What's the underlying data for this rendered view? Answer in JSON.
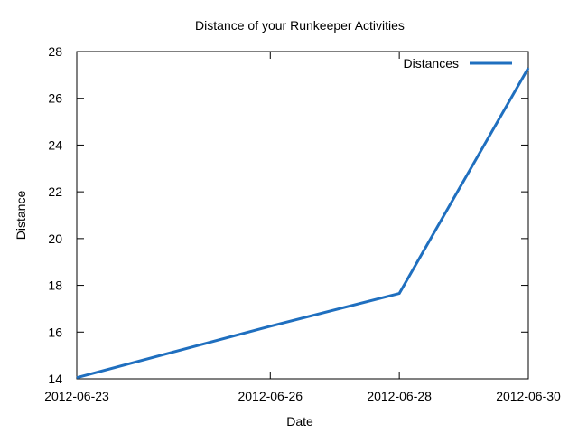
{
  "chart_data": {
    "type": "line",
    "title": "Distance of your Runkeeper Activities",
    "xlabel": "Date",
    "ylabel": "Distance",
    "x_tick_labels": [
      "2012-06-23",
      "2012-06-26",
      "2012-06-28",
      "2012-06-30"
    ],
    "y_ticks": [
      14,
      16,
      18,
      20,
      22,
      24,
      26,
      28
    ],
    "ylim": [
      14,
      28
    ],
    "legend_position": "top-right",
    "grid": false,
    "series": [
      {
        "name": "Distances",
        "color": "#1f6fbf",
        "points": [
          {
            "x": "2012-06-23",
            "y": 14.05
          },
          {
            "x": "2012-06-26",
            "y": 16.25
          },
          {
            "x": "2012-06-28",
            "y": 17.65
          },
          {
            "x": "2012-06-30",
            "y": 27.3
          }
        ]
      }
    ]
  }
}
